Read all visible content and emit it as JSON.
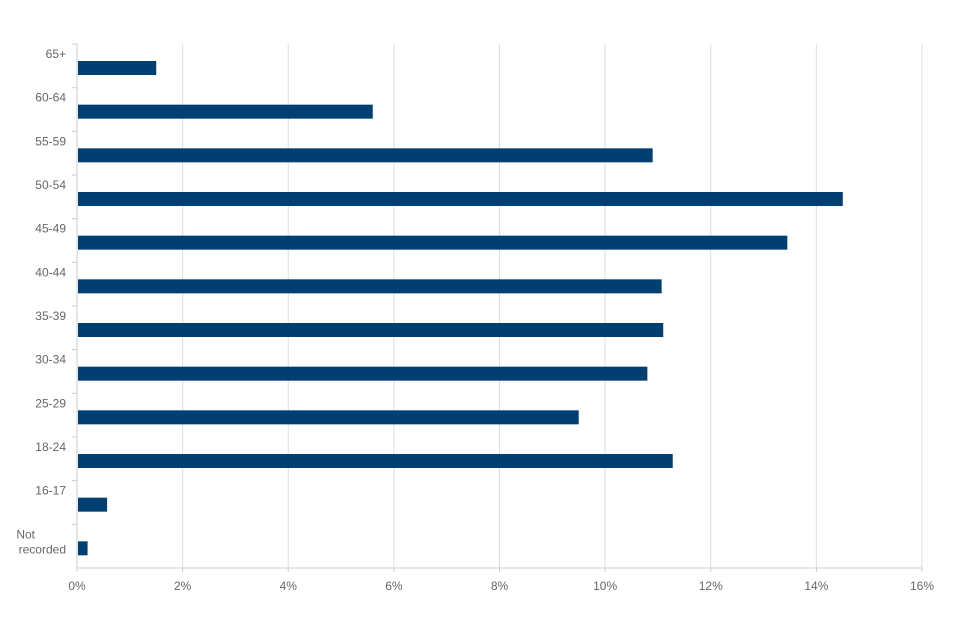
{
  "chart_data": {
    "type": "bar",
    "orientation": "horizontal",
    "title": "",
    "xlabel": "",
    "ylabel": "",
    "categories": [
      "65+",
      "60-64",
      "55-59",
      "50-54",
      "45-49",
      "40-44",
      "35-39",
      "30-34",
      "25-29",
      "18-24",
      "16-17",
      "Not recorded"
    ],
    "values": [
      1.5,
      5.6,
      10.9,
      14.5,
      13.45,
      11.07,
      11.1,
      10.8,
      9.5,
      11.28,
      0.57,
      0.2
    ],
    "xlim": [
      0,
      16
    ],
    "xticks": [
      0,
      2,
      4,
      6,
      8,
      10,
      12,
      14,
      16
    ],
    "tick_format": "%",
    "grid": true,
    "legend": "none",
    "bar_color": "#003f72"
  }
}
